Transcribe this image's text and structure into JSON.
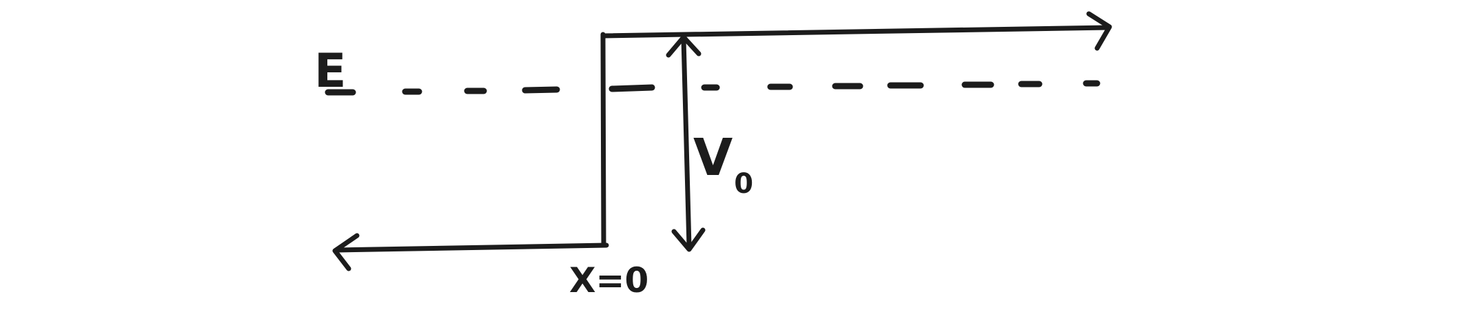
{
  "diagram": {
    "labels": {
      "energy": "E",
      "potential_main": "V",
      "potential_sub": "0",
      "position": "X=0"
    },
    "colors": {
      "ink": "#1c1c1c",
      "background": "#ffffff"
    }
  }
}
